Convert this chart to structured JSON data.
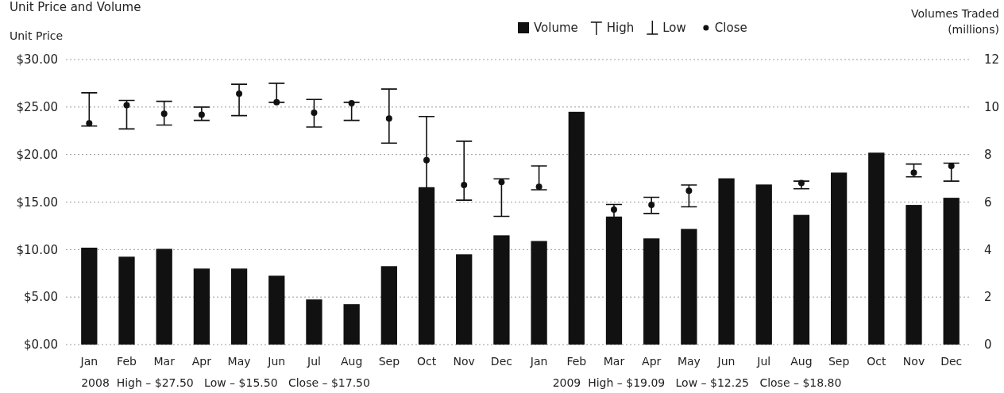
{
  "chart_data": {
    "type": "bar",
    "title": "Unit Price and Volume",
    "ylabel": "Unit Price",
    "y2label": "Volumes Traded (millions)",
    "categories": [
      "Jan",
      "Feb",
      "Mar",
      "Apr",
      "May",
      "Jun",
      "Jul",
      "Aug",
      "Sep",
      "Oct",
      "Nov",
      "Dec",
      "Jan",
      "Feb",
      "Mar",
      "Apr",
      "May",
      "Jun",
      "Jul",
      "Aug",
      "Sep",
      "Oct",
      "Nov",
      "Dec"
    ],
    "series": [
      {
        "name": "Volume",
        "axis": "y2",
        "color": "#111111",
        "values": [
          4.08,
          3.7,
          4.03,
          3.2,
          3.2,
          2.9,
          1.9,
          1.7,
          3.3,
          6.6,
          3.8,
          4.6,
          4.36,
          9.8,
          5.35,
          4.47,
          4.87,
          7.0,
          6.74,
          5.46,
          7.24,
          8.08,
          5.88,
          6.18
        ]
      },
      {
        "name": "Close",
        "type": "scatter",
        "marker": "circle",
        "color": "#111111",
        "values": [
          23.3,
          25.2,
          24.3,
          24.2,
          26.4,
          25.5,
          24.4,
          25.4,
          23.8,
          19.4,
          16.8,
          17.1,
          16.6,
          null,
          14.2,
          14.7,
          16.2,
          null,
          null,
          17.0,
          null,
          null,
          18.1,
          18.8
        ],
        "errors": [
          [
            23.0,
            26.5
          ],
          [
            22.7,
            25.7
          ],
          [
            23.1,
            25.6
          ],
          [
            23.6,
            25.0
          ],
          [
            24.1,
            27.4
          ],
          [
            25.5,
            27.5
          ],
          [
            22.9,
            25.8
          ],
          [
            23.6,
            25.5
          ],
          [
            21.2,
            26.9
          ],
          [
            16.5,
            24.0
          ],
          [
            15.2,
            21.4
          ],
          [
            13.5,
            17.45
          ],
          [
            16.3,
            18.8
          ],
          null,
          [
            13.4,
            14.75
          ],
          [
            13.8,
            15.5
          ],
          [
            14.5,
            16.8
          ],
          null,
          null,
          [
            16.4,
            17.2
          ],
          null,
          null,
          [
            17.65,
            19.0
          ],
          [
            17.2,
            19.1
          ]
        ]
      }
    ],
    "ylim": [
      0,
      30
    ],
    "yticks": [
      {
        "value": 0,
        "label": "$0.00"
      },
      {
        "value": 5,
        "label": "$5.00"
      },
      {
        "value": 10,
        "label": "$10.00"
      },
      {
        "value": 15,
        "label": "$15.00"
      },
      {
        "value": 20,
        "label": "$20.00"
      },
      {
        "value": 25,
        "label": "$25.00"
      },
      {
        "value": 30,
        "label": "$30.00"
      }
    ],
    "y2lim": [
      0,
      12
    ],
    "y2ticks": [
      0,
      2,
      4,
      6,
      8,
      10,
      12
    ],
    "grid": "y",
    "legend": "top",
    "annotations": [
      "High",
      "Low",
      "2008  High – $27.50   Low – $15.50   Close – $17.50",
      "2009  High – $19.09   Low – $12.25   Close – $18.80"
    ]
  }
}
